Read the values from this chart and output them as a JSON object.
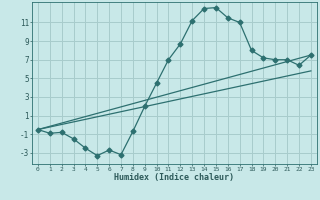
{
  "title": "",
  "xlabel": "Humidex (Indice chaleur)",
  "ylabel": "",
  "bg_color": "#c8e8e8",
  "grid_color": "#a8cccc",
  "line_color": "#2d7070",
  "xlim": [
    -0.5,
    23.5
  ],
  "ylim": [
    -4.2,
    13.2
  ],
  "xticks": [
    0,
    1,
    2,
    3,
    4,
    5,
    6,
    7,
    8,
    9,
    10,
    11,
    12,
    13,
    14,
    15,
    16,
    17,
    18,
    19,
    20,
    21,
    22,
    23
  ],
  "yticks": [
    -3,
    -1,
    1,
    3,
    5,
    7,
    9,
    11
  ],
  "curve1_x": [
    0,
    1,
    2,
    3,
    4,
    5,
    6,
    7,
    8,
    9,
    10,
    11,
    12,
    13,
    14,
    15,
    16,
    17,
    18,
    19,
    20,
    21,
    22,
    23
  ],
  "curve1_y": [
    -0.5,
    -0.9,
    -0.8,
    -1.5,
    -2.5,
    -3.3,
    -2.7,
    -3.2,
    -0.7,
    2.0,
    4.5,
    7.0,
    8.7,
    11.2,
    12.5,
    12.6,
    11.5,
    11.0,
    8.0,
    7.2,
    7.0,
    7.0,
    6.4,
    7.5
  ],
  "line2_x": [
    0,
    23
  ],
  "line2_y": [
    -0.5,
    7.5
  ],
  "line3_x": [
    0,
    23
  ],
  "line3_y": [
    -0.5,
    5.8
  ],
  "marker_size": 2.5,
  "linewidth": 0.9
}
